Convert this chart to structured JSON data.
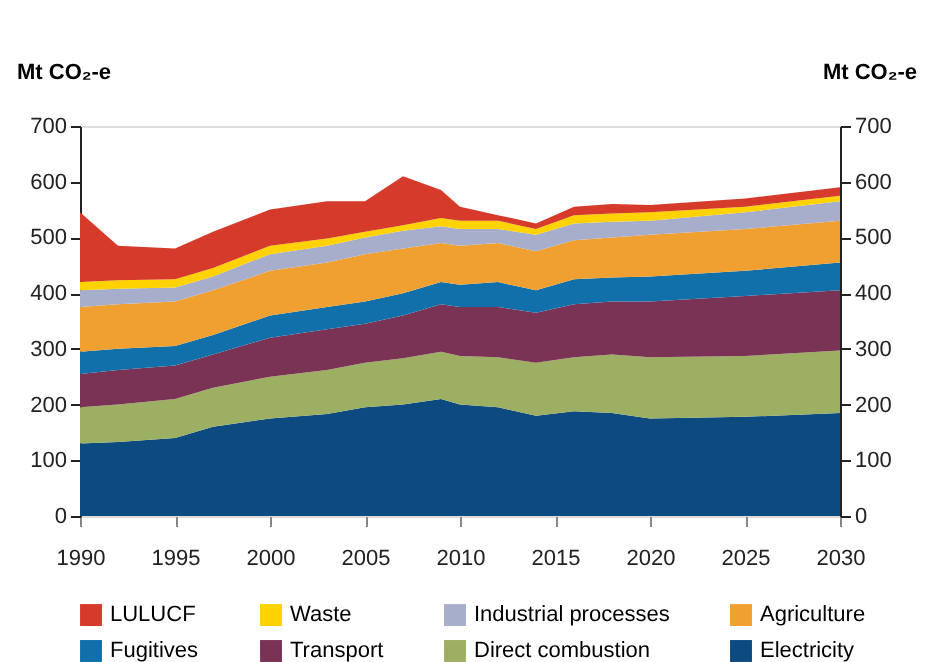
{
  "chart_data": {
    "type": "area",
    "stacked": true,
    "ylabel": "Mt CO₂-e",
    "y2label": "Mt CO₂-e",
    "x": [
      1990,
      1992,
      1995,
      1997,
      2000,
      2003,
      2005,
      2007,
      2009,
      2010,
      2012,
      2014,
      2016,
      2018,
      2020,
      2025,
      2030
    ],
    "xlim": [
      1990,
      2030
    ],
    "xticks": [
      1990,
      1995,
      2000,
      2005,
      2010,
      2015,
      2020,
      2025,
      2030
    ],
    "ylim": [
      0,
      700
    ],
    "yticks": [
      0,
      100,
      200,
      300,
      400,
      500,
      600,
      700
    ],
    "y2lim": [
      0,
      700
    ],
    "y2ticks": [
      0,
      100,
      200,
      300,
      400,
      500,
      600,
      700
    ],
    "grid": false,
    "legend": "bottom",
    "series": [
      {
        "name": "Electricity",
        "color": "#0d4a80",
        "values": [
          130,
          133,
          140,
          160,
          175,
          183,
          195,
          200,
          210,
          200,
          195,
          180,
          188,
          185,
          175,
          178,
          185
        ]
      },
      {
        "name": "Direct combustion",
        "color": "#9caf62",
        "values": [
          65,
          67,
          70,
          70,
          75,
          79,
          80,
          83,
          85,
          87,
          90,
          95,
          97,
          105,
          110,
          109,
          112
        ]
      },
      {
        "name": "Transport",
        "color": "#7b3355",
        "values": [
          60,
          62,
          60,
          60,
          70,
          73,
          70,
          77,
          85,
          88,
          90,
          90,
          95,
          95,
          100,
          108,
          108
        ]
      },
      {
        "name": "Fugitives",
        "color": "#1170aa",
        "values": [
          40,
          38,
          35,
          35,
          40,
          40,
          40,
          40,
          40,
          40,
          45,
          40,
          45,
          43,
          45,
          45,
          50
        ]
      },
      {
        "name": "Agriculture",
        "color": "#f0a030",
        "values": [
          80,
          80,
          80,
          80,
          80,
          80,
          85,
          80,
          70,
          70,
          70,
          70,
          70,
          72,
          75,
          75,
          75
        ]
      },
      {
        "name": "Industrial processes",
        "color": "#a7aecb",
        "values": [
          30,
          28,
          25,
          25,
          30,
          30,
          30,
          32,
          30,
          30,
          25,
          30,
          30,
          28,
          25,
          30,
          35
        ]
      },
      {
        "name": "Waste",
        "color": "#ffd200",
        "values": [
          15,
          15,
          15,
          15,
          15,
          13,
          10,
          10,
          15,
          15,
          15,
          10,
          15,
          15,
          15,
          10,
          10
        ]
      },
      {
        "name": "LULUCF",
        "color": "#d63a2a",
        "values": [
          125,
          62,
          55,
          65,
          65,
          67,
          55,
          88,
          50,
          25,
          10,
          10,
          15,
          17,
          13,
          15,
          15
        ]
      }
    ]
  }
}
